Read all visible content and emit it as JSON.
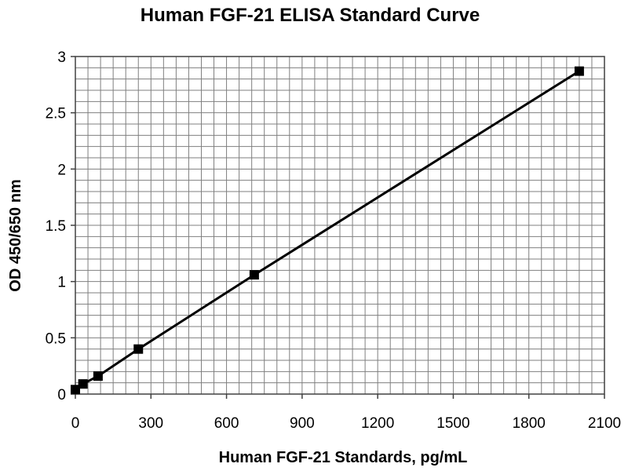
{
  "chart_data": {
    "type": "line",
    "title": "Human FGF-21 ELISA Standard Curve",
    "xlabel": "Human FGF-21 Standards, pg/mL",
    "ylabel": "OD 450/650 nm",
    "xlim": [
      0,
      2100
    ],
    "ylim": [
      0,
      3
    ],
    "x_ticks": [
      0,
      300,
      600,
      900,
      1200,
      1500,
      1800,
      2100
    ],
    "y_ticks": [
      0,
      0.5,
      1,
      1.5,
      2,
      2.5,
      3
    ],
    "x_tick_labels": [
      "0",
      "300",
      "600",
      "900",
      "1200",
      "1500",
      "1800",
      "2100"
    ],
    "y_tick_labels": [
      "0",
      "0.5",
      "1",
      "1.5",
      "2",
      "2.5",
      "3"
    ],
    "grid": true,
    "minor_grid_x_step": 50,
    "minor_grid_y_step": 0.1,
    "marker": "square",
    "colors": {
      "series": "#000000",
      "grid": "#7f7f7f"
    },
    "series": [
      {
        "x": [
          0,
          30,
          90,
          250,
          710,
          2000
        ],
        "y": [
          0.04,
          0.09,
          0.16,
          0.4,
          1.06,
          2.87
        ]
      }
    ]
  }
}
